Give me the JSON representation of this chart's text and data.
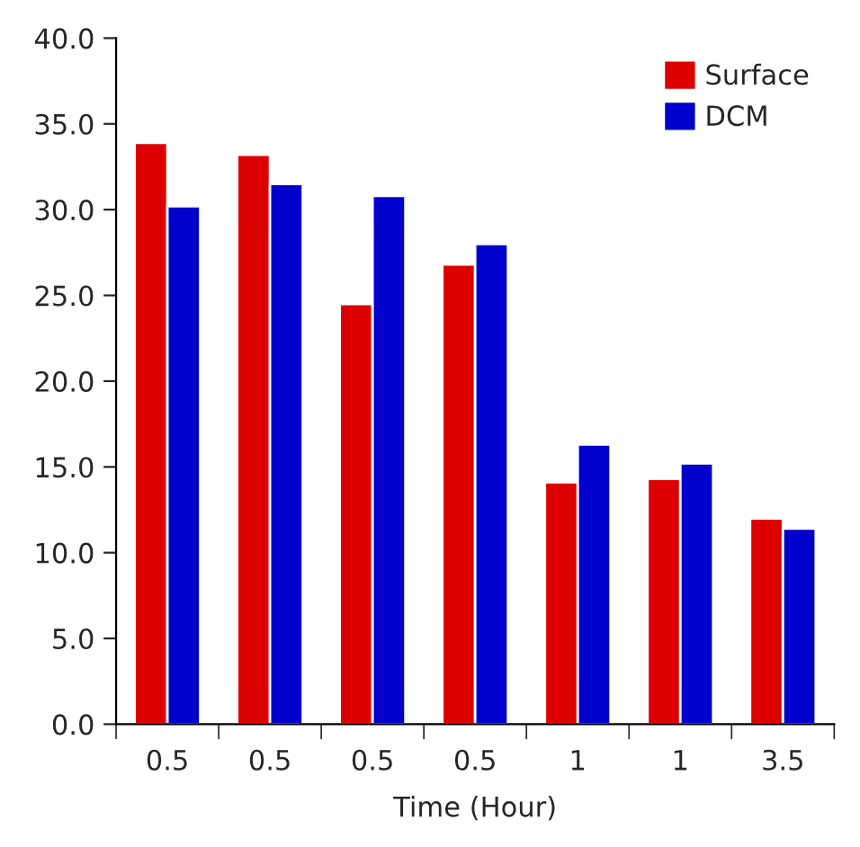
{
  "chart_data": {
    "type": "bar",
    "xlabel": "Time (Hour)",
    "categories": [
      "0.5",
      "0.5",
      "0.5",
      "0.5",
      "1",
      "1",
      "3.5"
    ],
    "series": [
      {
        "name": "Surface",
        "color": "#dd0000",
        "values": [
          33.9,
          33.2,
          24.5,
          26.8,
          14.1,
          14.3,
          12.0
        ]
      },
      {
        "name": "DCM",
        "color": "#0000cc",
        "values": [
          30.2,
          31.5,
          30.8,
          28.0,
          16.3,
          15.2,
          11.4
        ]
      }
    ],
    "ylim": [
      0,
      40
    ],
    "yticks": [
      {
        "value": 0,
        "label": "0.0"
      },
      {
        "value": 5,
        "label": "5.0"
      },
      {
        "value": 10,
        "label": "10.0"
      },
      {
        "value": 15,
        "label": "15.0"
      },
      {
        "value": 20,
        "label": "20.0"
      },
      {
        "value": 25,
        "label": "25.0"
      },
      {
        "value": 30,
        "label": "30.0"
      },
      {
        "value": 35,
        "label": "35.0"
      },
      {
        "value": 40,
        "label": "40.0"
      }
    ],
    "grid": false,
    "legend": "top right"
  }
}
